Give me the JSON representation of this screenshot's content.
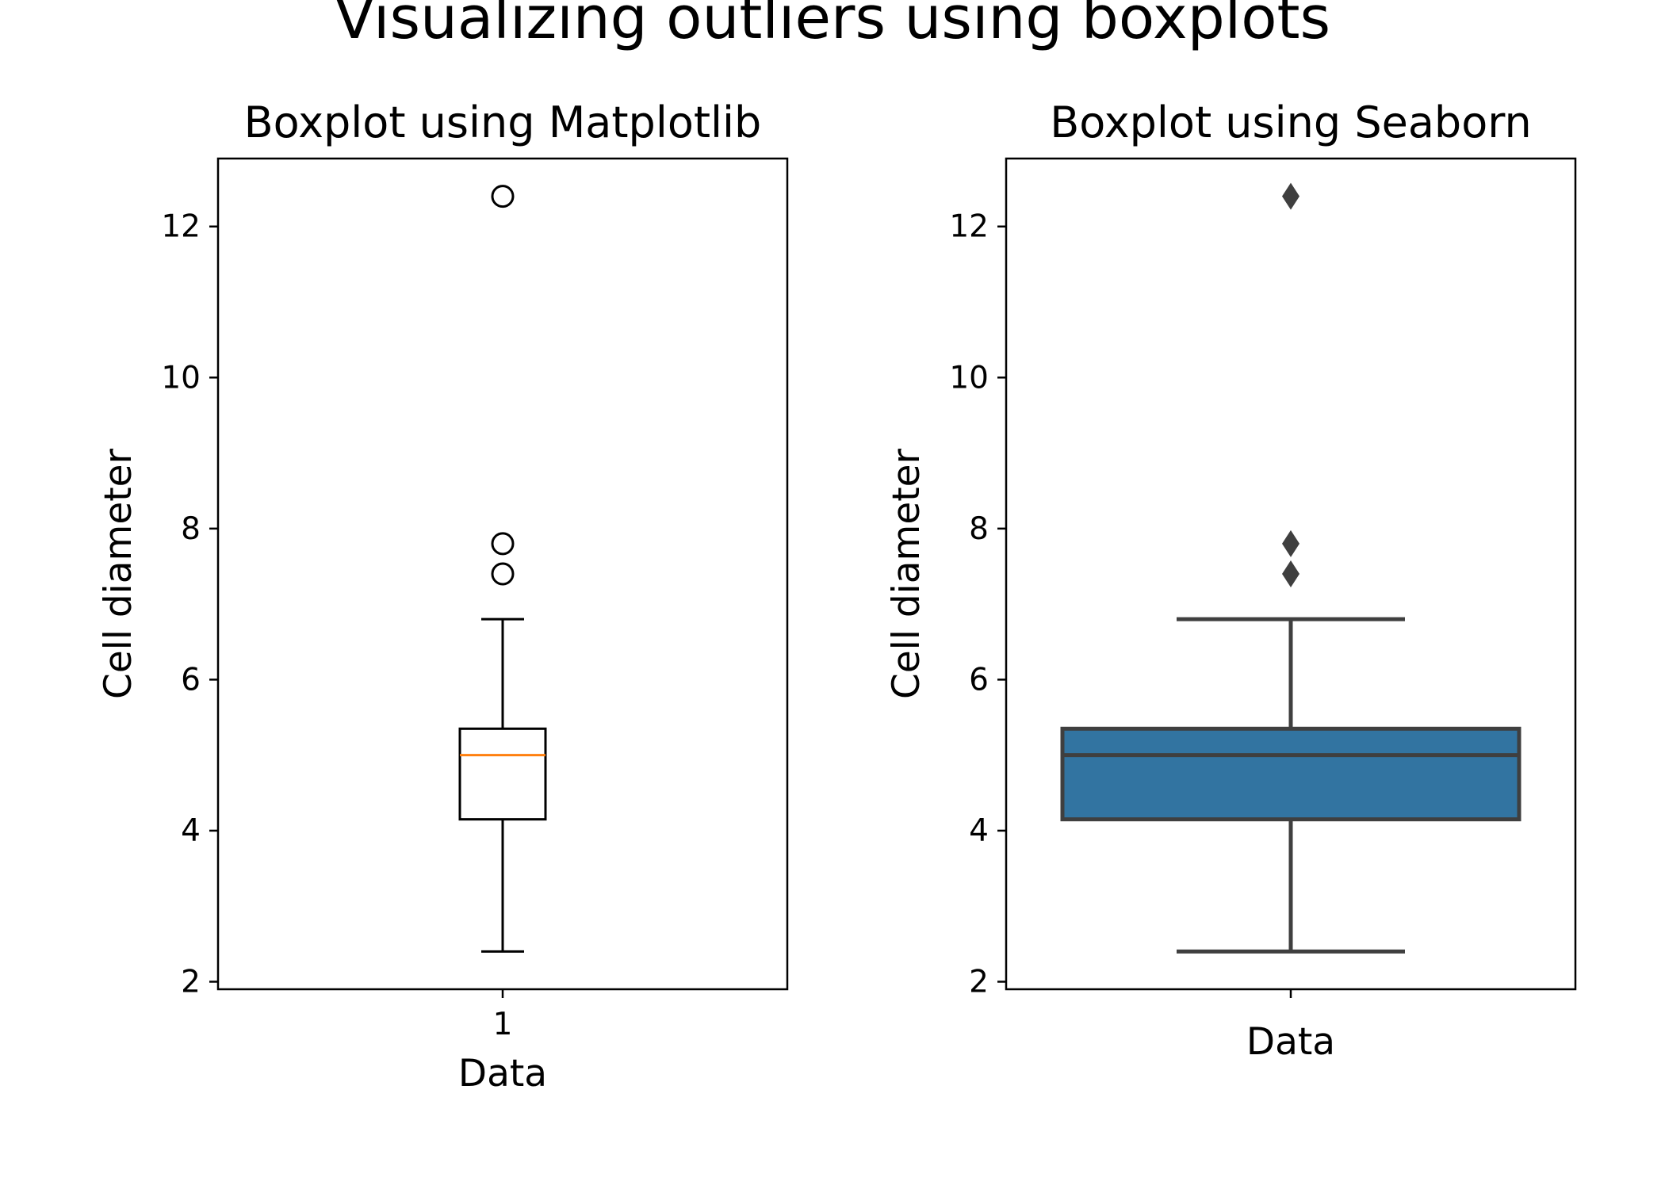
{
  "figure": {
    "suptitle": "Visualizing outliers using boxplots"
  },
  "chart_data": [
    {
      "type": "boxplot",
      "library_style": "matplotlib",
      "title": "Boxplot using Matplotlib",
      "xlabel": "Data",
      "ylabel": "Cell  diameter",
      "x_tick_labels": [
        "1"
      ],
      "ylim": [
        1.9,
        12.9
      ],
      "y_ticks": [
        2,
        4,
        6,
        8,
        10,
        12
      ],
      "grid": false,
      "box": {
        "whisker_low": 2.4,
        "q1": 4.15,
        "median": 5.0,
        "q3": 5.35,
        "whisker_high": 6.8
      },
      "outliers": [
        7.4,
        7.8,
        12.4
      ],
      "colors": {
        "box_fill": "#ffffff",
        "box_edge": "#000000",
        "median": "#ff7f0e",
        "outlier_marker": "#000000"
      },
      "outlier_marker": "circle"
    },
    {
      "type": "boxplot",
      "library_style": "seaborn",
      "title": "Boxplot using Seaborn",
      "xlabel": "Data",
      "ylabel": "Cell  diameter",
      "x_tick_labels": [],
      "ylim": [
        1.9,
        12.9
      ],
      "y_ticks": [
        2,
        4,
        6,
        8,
        10,
        12
      ],
      "grid": false,
      "box": {
        "whisker_low": 2.4,
        "q1": 4.15,
        "median": 5.0,
        "q3": 5.35,
        "whisker_high": 6.8
      },
      "outliers": [
        7.4,
        7.8,
        12.4
      ],
      "colors": {
        "box_fill": "#3274a1",
        "box_edge": "#3f3f3f",
        "median": "#3f3f3f",
        "outlier_marker": "#3f3f3f"
      },
      "outlier_marker": "diamond"
    }
  ]
}
